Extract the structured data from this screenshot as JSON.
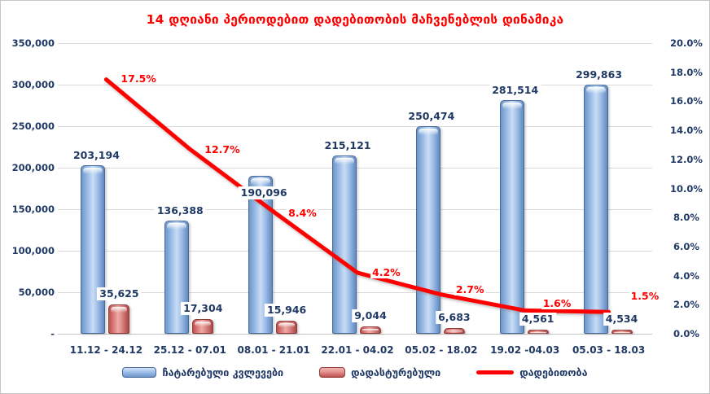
{
  "chart_data": {
    "type": "combo-bar-line",
    "title": "14 დღიანი პერიოდებით დადებითობის მაჩვენებლის დინამიკა",
    "categories": [
      "11.12 - 24.12",
      "25.12 - 07.01",
      "08.01 - 21.01",
      "22.01 - 04.02",
      "05.02 - 18.02",
      "19.02 -04.03",
      "05.03 - 18.03"
    ],
    "series": [
      {
        "name": "ჩატარებული კვლევები",
        "type": "bar",
        "axis": "left",
        "values": [
          203194,
          136388,
          190096,
          215121,
          250474,
          281514,
          299863
        ],
        "labels": [
          "203,194",
          "136,388",
          "190,096",
          "215,121",
          "250,474",
          "281,514",
          "299,863"
        ]
      },
      {
        "name": "დადასტურებული",
        "type": "bar",
        "axis": "left",
        "values": [
          35625,
          17304,
          15946,
          9044,
          6683,
          4561,
          4534
        ],
        "labels": [
          "35,625",
          "17,304",
          "15,946",
          "9,044",
          "6,683",
          "4,561",
          "4,534"
        ]
      },
      {
        "name": "დადებითობა",
        "type": "line",
        "axis": "right",
        "values": [
          17.5,
          12.7,
          8.4,
          4.2,
          2.7,
          1.6,
          1.5
        ],
        "labels": [
          "17.5%",
          "12.7%",
          "8.4%",
          "4.2%",
          "2.7%",
          "1.6%",
          "1.5%"
        ]
      }
    ],
    "left_axis": {
      "min": 0,
      "max": 350000,
      "step": 50000,
      "ticks": [
        "350,000",
        "300,000",
        "250,000",
        "200,000",
        "150,000",
        "100,000",
        "50,000",
        "-"
      ]
    },
    "right_axis": {
      "min": 0,
      "max": 20,
      "step": 2,
      "ticks": [
        "20.0%",
        "18.0%",
        "16.0%",
        "14.0%",
        "12.0%",
        "10.0%",
        "8.0%",
        "6.0%",
        "4.0%",
        "2.0%",
        "0.0%"
      ]
    },
    "grid": "horizontal",
    "legend_position": "bottom",
    "colors": {
      "title": "#FF0000",
      "axis_text": "#1F3864",
      "bar_blue": "#9FC0EA",
      "bar_blue_border": "#46699C",
      "bar_red": "#E2918E",
      "bar_red_border": "#8E3B39",
      "line": "#FF0000",
      "gridline": "#D9D9D9"
    }
  }
}
